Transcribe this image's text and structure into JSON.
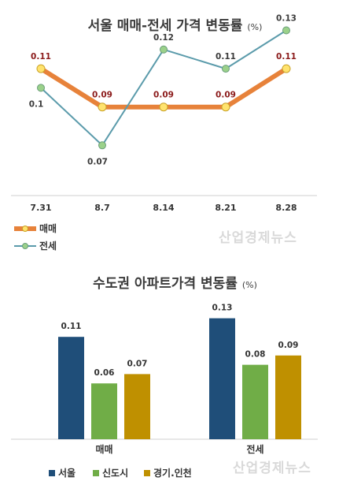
{
  "chart_data": [
    {
      "type": "line",
      "title": "서울 매매-전세 가격 변동률",
      "unit": "(%)",
      "categories": [
        "7.31",
        "8.7",
        "8.14",
        "8.21",
        "8.28"
      ],
      "series": [
        {
          "name": "매매",
          "values": [
            0.11,
            0.09,
            0.09,
            0.09,
            0.11
          ],
          "labels": [
            "0.11",
            "0.09",
            "0.09",
            "0.09",
            "0.11"
          ],
          "color": "#e7823a",
          "marker": "#ffe36e"
        },
        {
          "name": "전세",
          "values": [
            0.1,
            0.07,
            0.12,
            0.11,
            0.13
          ],
          "labels": [
            "0.1",
            "0.07",
            "0.12",
            "0.11",
            "0.13"
          ],
          "color": "#5b9bab",
          "marker": "#9bd18a"
        }
      ],
      "ylim": [
        0.06,
        0.14
      ],
      "legend": "bottom-left"
    },
    {
      "type": "bar",
      "title": "수도권 아파트가격 변동률",
      "unit": "(%)",
      "categories": [
        "매매",
        "전세"
      ],
      "series": [
        {
          "name": "서울",
          "values": [
            0.11,
            0.13
          ],
          "labels": [
            "0.11",
            "0.13"
          ],
          "color": "#1f4e79"
        },
        {
          "name": "신도시",
          "values": [
            0.06,
            0.08
          ],
          "labels": [
            "0.06",
            "0.08"
          ],
          "color": "#70ad47"
        },
        {
          "name": "경기.인천",
          "values": [
            0.07,
            0.09
          ],
          "labels": [
            "0.07",
            "0.09"
          ],
          "color": "#bf9000"
        }
      ],
      "ylim": [
        0,
        0.14
      ],
      "legend": "bottom"
    }
  ],
  "watermark": "산업경제뉴스",
  "colors": {
    "sale_label": "#8b1a1a",
    "jeonse_label": "#3a3a3a"
  }
}
